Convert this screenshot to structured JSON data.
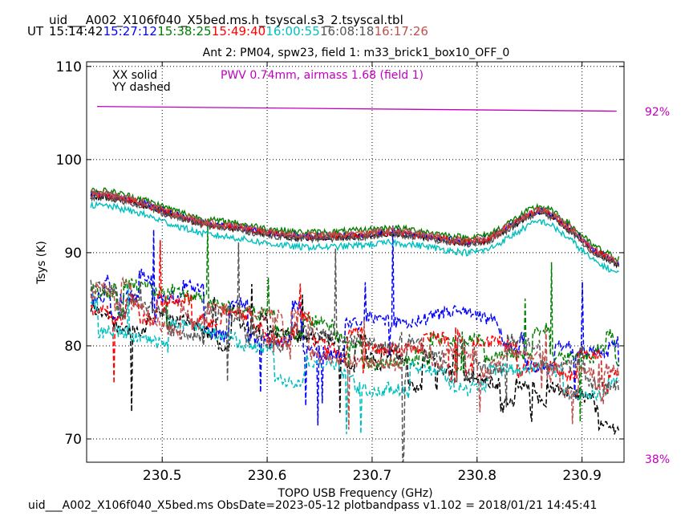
{
  "header": {
    "filename": "uid___A002_X106f040_X5bed.ms.h_tsyscal.s3_2.tsyscal.tbl",
    "ut_label": "UT",
    "times": [
      {
        "text": "15:14:42",
        "color": "#000000"
      },
      {
        "text": "15:27:12",
        "color": "#0000ff"
      },
      {
        "text": "15:38:25",
        "color": "#007f00"
      },
      {
        "text": "15:49:40",
        "color": "#ff0000"
      },
      {
        "text": "16:00:55",
        "color": "#00bfbf"
      },
      {
        "text": "16:08:18",
        "color": "#555555"
      },
      {
        "text": "16:17:26",
        "color": "#c0504d"
      }
    ]
  },
  "footer": {
    "text": "uid___A002_X106f040_X5bed.ms  ObsDate=2023-05-12   plotbandpass v1.102 = 2018/01/21 14:45:41"
  },
  "chart_data": {
    "type": "line",
    "title": "Ant 2: PM04,  spw23,  field 1: m33_brick1_box10_OFF_0",
    "xlabel": "TOPO USB Frequency (GHz)",
    "ylabel": "Tsys (K)",
    "xlim": [
      230.428,
      230.94
    ],
    "ylim": [
      67.5,
      110.5
    ],
    "xticks": [
      230.5,
      230.6,
      230.7,
      230.8,
      230.9
    ],
    "xtick_labels": [
      "230.5",
      "230.6",
      "230.7",
      "230.8",
      "230.9"
    ],
    "yticks": [
      70,
      80,
      90,
      100,
      110
    ],
    "ytick_labels": [
      "70",
      "80",
      "90",
      "100",
      "110"
    ],
    "grid": true,
    "legend": {
      "lines": [
        "XX solid",
        "YY dashed"
      ],
      "placement": "top-left"
    },
    "pwv_annotation": {
      "text": "PWV 0.74mm, airmass 1.68 (field 1)",
      "color": "#bf00bf"
    },
    "transmission": {
      "color": "#bf00bf",
      "top_label": "92%",
      "bottom_label": "38%",
      "x": [
        230.438,
        230.933
      ],
      "y": [
        105.7,
        105.2
      ]
    },
    "xx_profile": {
      "x": [
        230.43,
        230.45,
        230.48,
        230.51,
        230.54,
        230.57,
        230.6,
        230.63,
        230.66,
        230.69,
        230.72,
        230.75,
        230.77,
        230.79,
        230.81,
        230.83,
        230.85,
        230.86,
        230.87,
        230.89,
        230.91,
        230.935
      ],
      "y": [
        96.1,
        96.0,
        95.2,
        94.0,
        93.0,
        92.6,
        92.0,
        91.6,
        91.6,
        91.8,
        92.1,
        91.7,
        91.3,
        91.0,
        91.3,
        92.6,
        94.0,
        94.4,
        94.0,
        92.3,
        90.2,
        88.7
      ]
    },
    "xx_series": [
      {
        "color": "#000000",
        "offset": 0.0
      },
      {
        "color": "#0000ff",
        "offset": 0.2
      },
      {
        "color": "#007f00",
        "offset": 0.6
      },
      {
        "color": "#ff0000",
        "offset": 0.1
      },
      {
        "color": "#00bfbf",
        "offset": -1.0
      },
      {
        "color": "#555555",
        "offset": -0.1
      },
      {
        "color": "#c0504d",
        "offset": 0.3
      }
    ],
    "yy_series": [
      {
        "color": "#000000",
        "x": [
          230.43,
          230.48,
          230.53,
          230.58,
          230.63,
          230.68,
          230.73,
          230.78,
          230.83,
          230.88,
          230.935
        ],
        "y": [
          84.0,
          82.5,
          83.5,
          81.5,
          80.5,
          79.2,
          78.0,
          77.0,
          75.5,
          73.5,
          72.0
        ]
      },
      {
        "color": "#0000ff",
        "x": [
          230.43,
          230.48,
          230.53,
          230.58,
          230.63,
          230.68,
          230.73,
          230.78,
          230.83,
          230.88,
          230.935
        ],
        "y": [
          85.0,
          85.5,
          84.0,
          82.5,
          82.0,
          81.0,
          80.0,
          81.5,
          80.0,
          78.5,
          78.0
        ]
      },
      {
        "color": "#007f00",
        "x": [
          230.43,
          230.48,
          230.53,
          230.58,
          230.63,
          230.68,
          230.73,
          230.78,
          230.83,
          230.88,
          230.935
        ],
        "y": [
          86.0,
          85.0,
          83.0,
          81.5,
          80.8,
          80.0,
          80.5,
          79.8,
          80.5,
          79.5,
          79.0
        ]
      },
      {
        "color": "#ff0000",
        "x": [
          230.43,
          230.48,
          230.53,
          230.58,
          230.63,
          230.68,
          230.73,
          230.78,
          230.83,
          230.88,
          230.935
        ],
        "y": [
          84.0,
          83.0,
          83.5,
          82.0,
          81.0,
          79.5,
          79.0,
          78.5,
          78.0,
          78.0,
          77.5
        ]
      },
      {
        "color": "#00bfbf",
        "x": [
          230.43,
          230.48,
          230.53,
          230.58,
          230.63,
          230.68,
          230.73,
          230.78,
          230.83,
          230.88,
          230.935
        ],
        "y": [
          83.0,
          82.0,
          80.5,
          79.0,
          78.0,
          77.5,
          76.5,
          75.5,
          75.0,
          75.5,
          75.5
        ]
      },
      {
        "color": "#555555",
        "x": [
          230.43,
          230.48,
          230.53,
          230.58,
          230.63,
          230.68,
          230.73,
          230.78,
          230.83,
          230.88,
          230.935
        ],
        "y": [
          86.5,
          85.0,
          83.0,
          82.0,
          80.0,
          79.0,
          78.5,
          78.5,
          78.5,
          77.5,
          77.0
        ]
      },
      {
        "color": "#c0504d",
        "x": [
          230.43,
          230.48,
          230.53,
          230.58,
          230.63,
          230.68,
          230.73,
          230.78,
          230.83,
          230.88,
          230.935
        ],
        "y": [
          85.5,
          84.5,
          82.5,
          81.5,
          81.0,
          80.0,
          79.5,
          78.5,
          78.5,
          77.5,
          75.5
        ]
      }
    ]
  }
}
